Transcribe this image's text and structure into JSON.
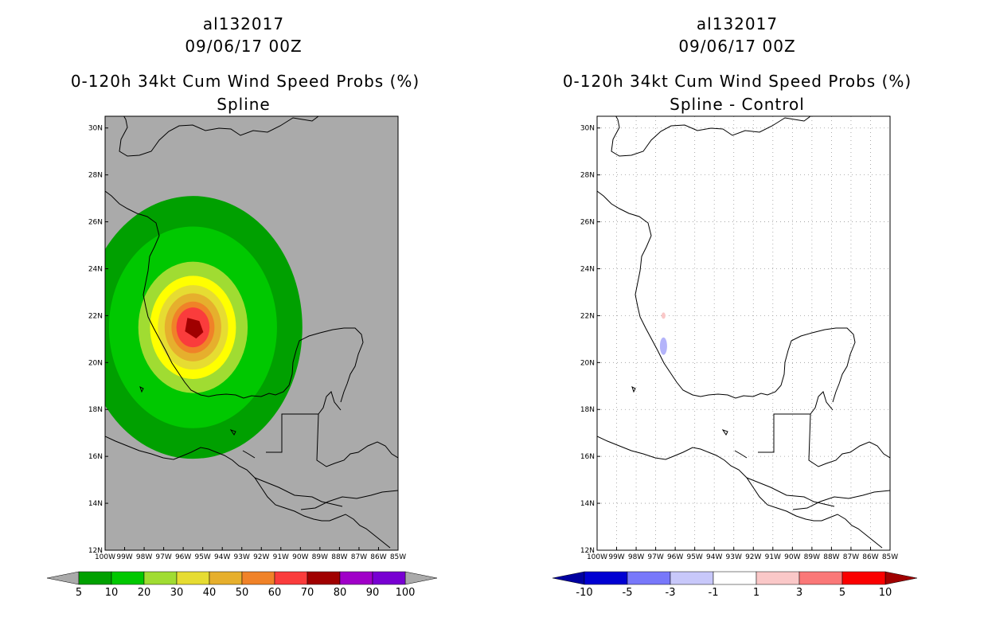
{
  "left_panel": {
    "storm_id": "al132017",
    "datetime": "09/06/17 00Z",
    "product": "0-120h 34kt Cum Wind Speed Probs (%)",
    "subtitle": "Spline"
  },
  "right_panel": {
    "storm_id": "al132017",
    "datetime": "09/06/17 00Z",
    "product": "0-120h 34kt Cum Wind Speed Probs (%)",
    "subtitle": "Spline - Control"
  },
  "chart_data": [
    {
      "type": "heatmap",
      "title": "0-120h 34kt Cum Wind Speed Probs (%)",
      "subtitle": "Spline",
      "lon_ticks": [
        "100W",
        "99W",
        "98W",
        "97W",
        "96W",
        "95W",
        "94W",
        "93W",
        "92W",
        "91W",
        "90W",
        "89W",
        "88W",
        "87W",
        "86W",
        "85W"
      ],
      "lat_ticks": [
        "12N",
        "14N",
        "16N",
        "18N",
        "20N",
        "22N",
        "24N",
        "26N",
        "28N",
        "30N"
      ],
      "lon_range": [
        -100,
        -85
      ],
      "lat_range": [
        12,
        30.5
      ],
      "grid": false,
      "background_color": "#aaaaaa",
      "center": {
        "lon": -95.5,
        "lat": 21.5
      },
      "contour_levels": [
        {
          "min": 5,
          "color": "#00a000",
          "radius_deg": 5.6
        },
        {
          "min": 10,
          "color": "#00c800",
          "radius_deg": 4.3
        },
        {
          "min": 20,
          "color": "#a0dc32",
          "radius_deg": 2.8
        },
        {
          "min": 30,
          "color": "#ffff00",
          "radius_deg": 2.2
        },
        {
          "min": 40,
          "color": "#e6dc32",
          "radius_deg": 1.8
        },
        {
          "min": 50,
          "color": "#e6af2d",
          "radius_deg": 1.45
        },
        {
          "min": 60,
          "color": "#f08228",
          "radius_deg": 1.1
        },
        {
          "min": 70,
          "color": "#fa3c3c",
          "radius_deg": 0.85
        },
        {
          "min": 80,
          "color": "#fa3c3c",
          "radius_deg": 0.6
        },
        {
          "min": 90,
          "color": "#a00000",
          "radius_deg": 0.3
        }
      ],
      "colorbar": {
        "labels": [
          "5",
          "10",
          "20",
          "30",
          "40",
          "50",
          "60",
          "70",
          "80",
          "90",
          "100"
        ],
        "colors": [
          "#00a000",
          "#00c800",
          "#a0dc32",
          "#e6dc32",
          "#e6af2d",
          "#f08228",
          "#fa3c3c",
          "#a00000",
          "#a000c8",
          "#7800d2"
        ],
        "under_color": "#aaaaaa",
        "over_color": "#aaaaaa"
      }
    },
    {
      "type": "heatmap",
      "title": "0-120h 34kt Cum Wind Speed Probs (%)",
      "subtitle": "Spline - Control",
      "lon_ticks": [
        "100W",
        "99W",
        "98W",
        "97W",
        "96W",
        "95W",
        "94W",
        "93W",
        "92W",
        "91W",
        "90W",
        "89W",
        "88W",
        "87W",
        "86W",
        "85W"
      ],
      "lat_ticks": [
        "12N",
        "14N",
        "16N",
        "18N",
        "20N",
        "22N",
        "24N",
        "26N",
        "28N",
        "30N"
      ],
      "lon_range": [
        -100,
        -85
      ],
      "lat_range": [
        12,
        30.5
      ],
      "grid": true,
      "background_color": "#ffffff",
      "blobs": [
        {
          "lon": -96.6,
          "lat": 22.0,
          "value": 1.5,
          "color": "#fac8c8"
        },
        {
          "lon": -96.6,
          "lat": 20.7,
          "value": -2,
          "color": "#b4b4fa"
        }
      ],
      "colorbar": {
        "labels": [
          "-10",
          "-5",
          "-3",
          "-1",
          "1",
          "3",
          "5",
          "10"
        ],
        "colors": [
          "#0000d2",
          "#7878fa",
          "#c8c8fa",
          "#ffffff",
          "#fac8c8",
          "#fa7878",
          "#fa0000"
        ],
        "under_color": "#0000a0",
        "over_color": "#a00000"
      }
    }
  ]
}
